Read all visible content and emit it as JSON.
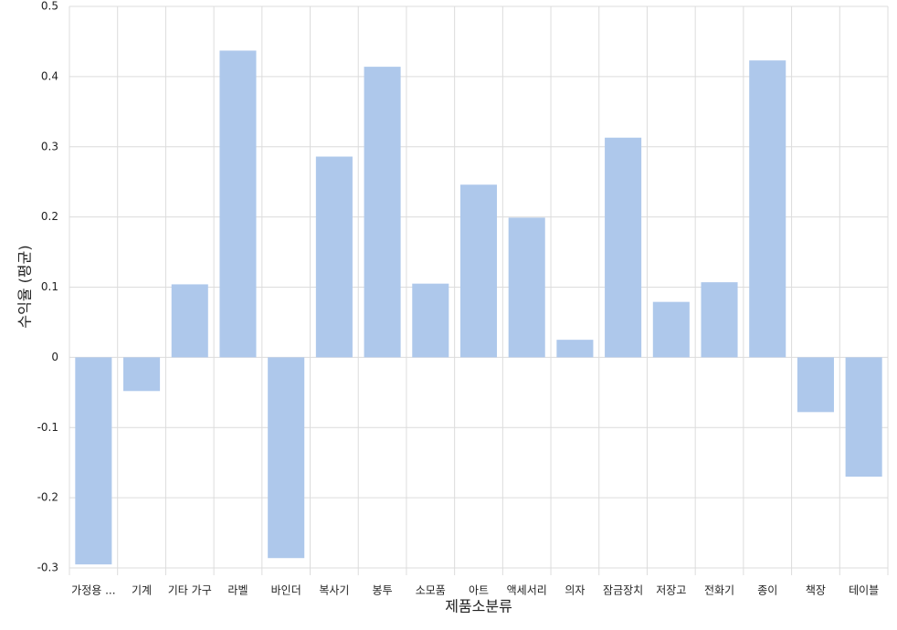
{
  "chart_data": {
    "type": "bar",
    "x_label": "제품소분류",
    "y_label": "수익율 (평균)",
    "categories": [
      "가정용 ...",
      "기계",
      "기타 가구",
      "라벨",
      "바인더",
      "복사기",
      "봉투",
      "소모품",
      "아트",
      "액세서리",
      "의자",
      "잠금장치",
      "저장고",
      "전화기",
      "종이",
      "책장",
      "테이블"
    ],
    "values": [
      -0.295,
      -0.048,
      0.104,
      0.437,
      -0.286,
      0.286,
      0.414,
      0.105,
      0.246,
      0.199,
      0.025,
      0.313,
      0.079,
      0.107,
      0.423,
      -0.078,
      -0.17
    ],
    "color": "#aec8eb",
    "ylim": [
      -0.3,
      0.5
    ],
    "yticks": [
      -0.3,
      -0.2,
      -0.1,
      0,
      0.1,
      0.2,
      0.3,
      0.4,
      0.5
    ],
    "grid": true
  }
}
